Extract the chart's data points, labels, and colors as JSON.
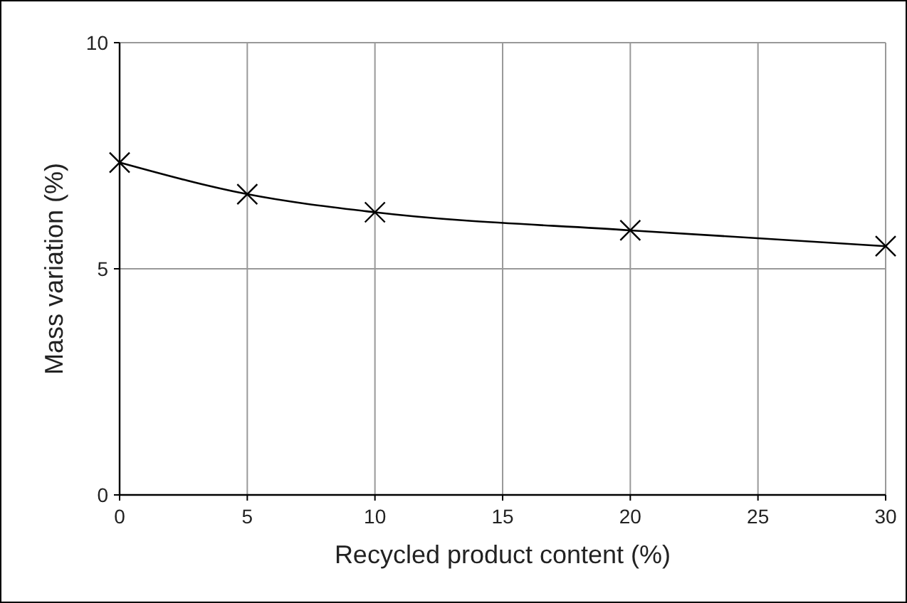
{
  "chart_data": {
    "type": "line",
    "xlabel": "Recycled product content (%)",
    "ylabel": "Mass variation (%)",
    "x": [
      0,
      5,
      10,
      20,
      30
    ],
    "series": [
      {
        "color": "#000000",
        "values": [
          7.35,
          6.65,
          6.25,
          5.85,
          5.5
        ]
      }
    ],
    "xlim": [
      0,
      30
    ],
    "xticks": [
      0,
      5,
      10,
      15,
      20,
      25,
      30
    ],
    "ylim": [
      0,
      10
    ],
    "yticks": [
      0,
      5,
      10
    ],
    "grid": true,
    "marker": "cross",
    "line_style": "solid"
  }
}
